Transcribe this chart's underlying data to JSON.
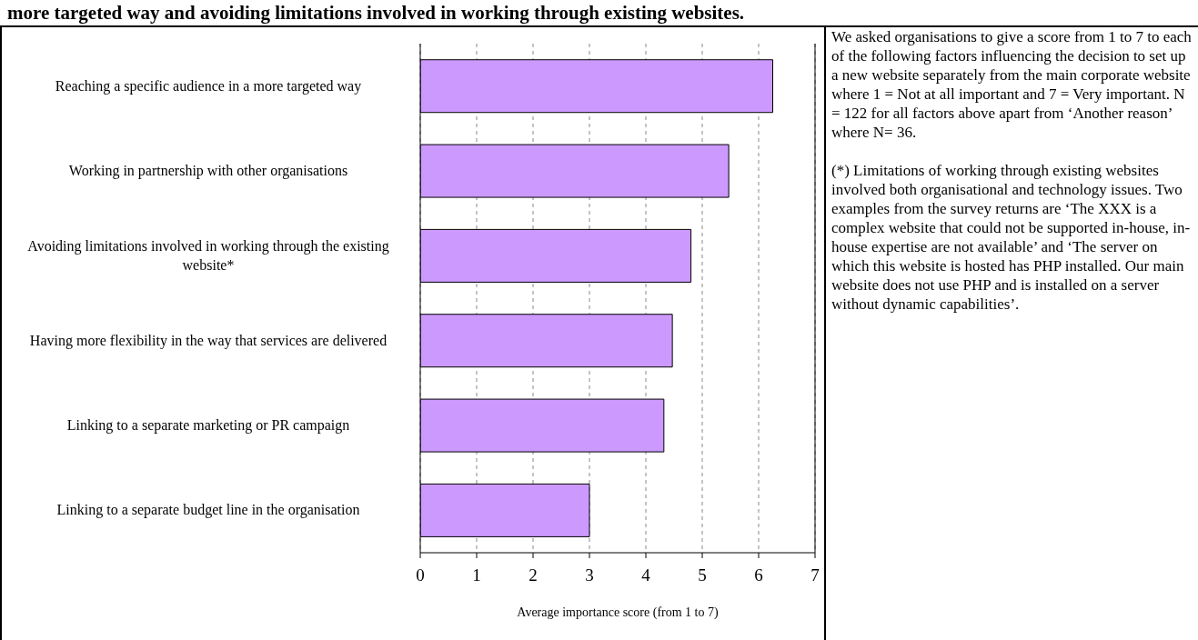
{
  "chart_data": {
    "type": "bar",
    "orientation": "horizontal",
    "title": "more targeted way and avoiding limitations involved in working through existing websites.",
    "categories": [
      "Reaching a specific audience in a more targeted way",
      "Working in partnership with other organisations",
      "Avoiding limitations involved in working through the existing website*",
      "Having more flexibility in the way that services are delivered",
      "Linking to a separate marketing or PR campaign",
      "Linking to a separate budget line in the organisation"
    ],
    "values": [
      6.25,
      5.47,
      4.8,
      4.47,
      4.32,
      3.0
    ],
    "color": "#cc99ff",
    "xlim": [
      0,
      7
    ],
    "xticks": [
      0,
      1,
      2,
      3,
      4,
      5,
      6,
      7
    ],
    "grid": "x",
    "xlabel": "Average importance score (from 1 to 7)",
    "annotations": [
      "We asked organisations to give a score from 1 to 7 to each of the following factors influencing the decision to set up a new website separately from the main corporate website where 1 = Not at all important and 7 = Very important. N = 122 for all factors above apart from ‘Another reason’ where N= 36.",
      "(*) Limitations of working through existing websites involved both organisational and technology issues. Two examples from the survey returns are ‘The XXX is a complex website that could not be supported in-house, in-house expertise are not available’ and ‘The server on which this website is hosted has PHP installed. Our main website does not use PHP and is installed on a server without dynamic capabilities’."
    ]
  }
}
